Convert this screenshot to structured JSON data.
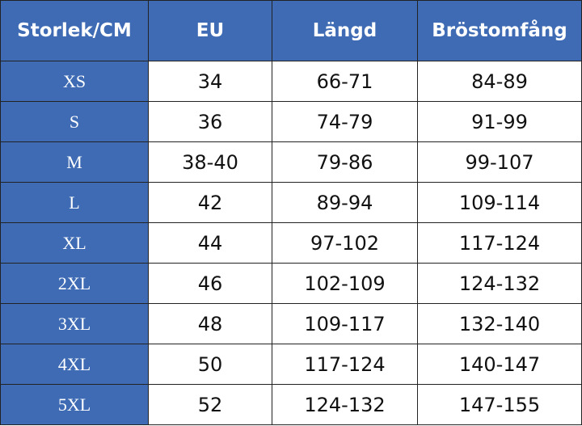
{
  "table": {
    "header": [
      "Storlek/CM",
      "EU",
      "Längd",
      "Bröstomfång"
    ],
    "rows": [
      [
        "XS",
        "34",
        "66-71",
        "84-89"
      ],
      [
        "S",
        "36",
        "74-79",
        "91-99"
      ],
      [
        "M",
        "38-40",
        "79-86",
        "99-107"
      ],
      [
        "L",
        "42",
        "89-94",
        "109-114"
      ],
      [
        "XL",
        "44",
        "97-102",
        "117-124"
      ],
      [
        "2XL",
        "46",
        "102-109",
        "124-132"
      ],
      [
        "3XL",
        "48",
        "109-117",
        "132-140"
      ],
      [
        "4XL",
        "50",
        "117-124",
        "140-147"
      ],
      [
        "5XL",
        "52",
        "124-132",
        "147-155"
      ]
    ]
  }
}
